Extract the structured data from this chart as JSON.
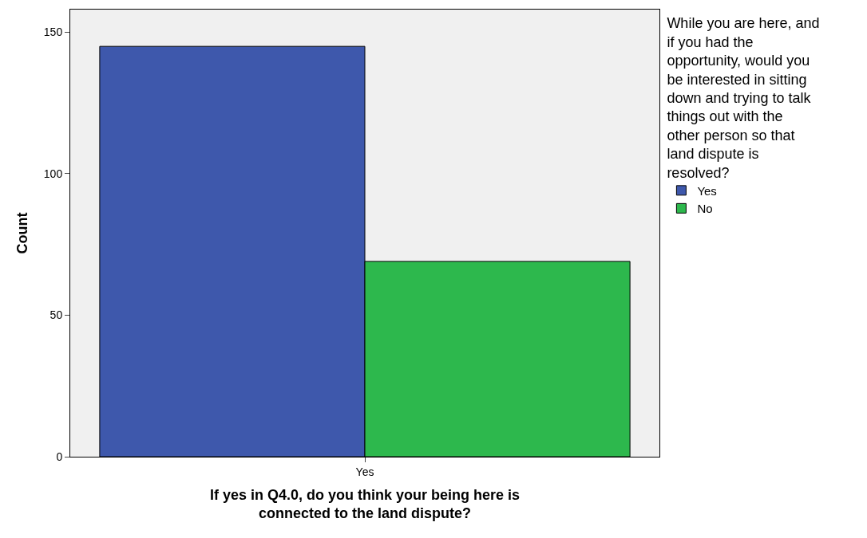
{
  "chart_data": {
    "type": "bar",
    "categories": [
      "Yes"
    ],
    "series": [
      {
        "name": "Yes",
        "color": "#3e58ac",
        "values": [
          145
        ]
      },
      {
        "name": "No",
        "color": "#2db84d",
        "values": [
          69
        ]
      }
    ],
    "xlabel": "If yes in Q4.0, do you think your being here is connected to the land dispute?",
    "ylabel": "Count",
    "legend_title": "While you are here, and if you had the opportunity, would you be interested in sitting down and trying to talk things out with the other person so that land dispute is resolved?",
    "ylim": [
      0,
      158
    ],
    "yticks": [
      0,
      50,
      100,
      150
    ],
    "grid": false,
    "legend": "top right"
  }
}
